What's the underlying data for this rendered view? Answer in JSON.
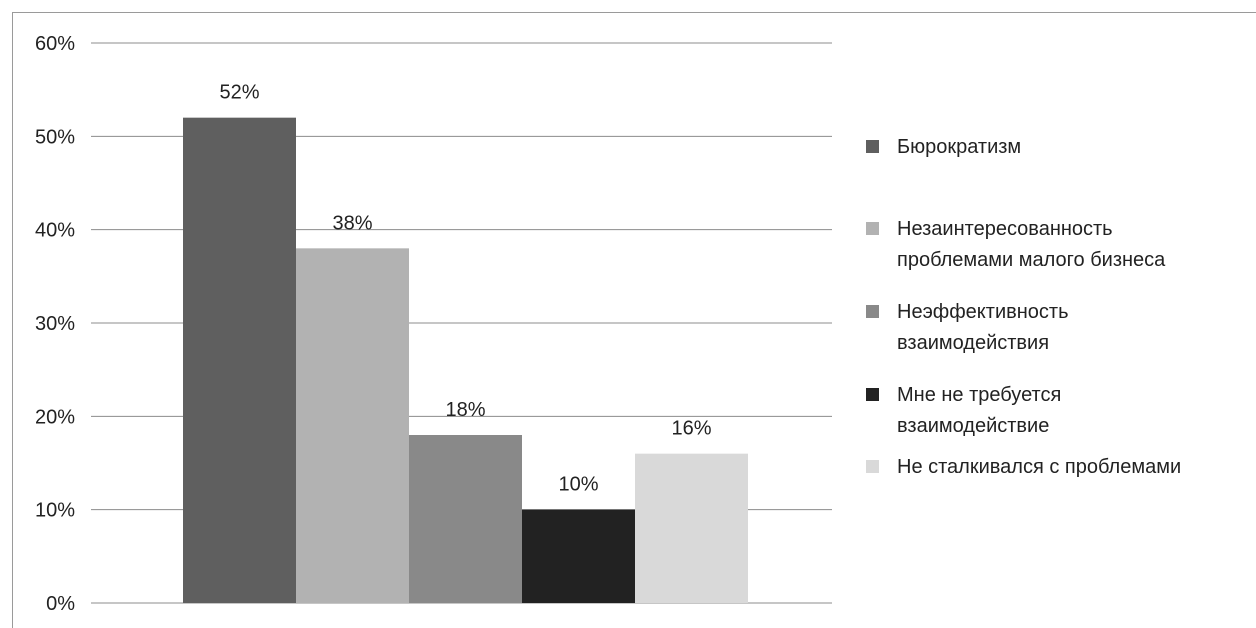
{
  "chart_data": {
    "type": "bar",
    "y_axis": {
      "min": 0,
      "max": 60,
      "step": 10,
      "tick_labels": [
        "0%",
        "10%",
        "20%",
        "30%",
        "40%",
        "50%",
        "60%"
      ]
    },
    "grid": true,
    "legend_position": "right",
    "series": [
      {
        "name": "Бюрократизм",
        "value": 52,
        "label": "52%",
        "color": "#5f5f5f",
        "legend_lines": [
          "Бюрократизм"
        ]
      },
      {
        "name": "Незаинтересованность проблемами малого бизнеса",
        "value": 38,
        "label": "38%",
        "color": "#b2b2b2",
        "legend_lines": [
          "Незаинтересованность",
          "проблемами малого бизнеса"
        ]
      },
      {
        "name": "Неэффективность взаимодействия",
        "value": 18,
        "label": "18%",
        "color": "#898989",
        "legend_lines": [
          "Неэффективность",
          "взаимодействия"
        ]
      },
      {
        "name": "Мне не требуется взаимодействие",
        "value": 10,
        "label": "10%",
        "color": "#222222",
        "legend_lines": [
          "Мне не требуется",
          "взаимодействие"
        ]
      },
      {
        "name": "Не сталкивался с проблемами",
        "value": 16,
        "label": "16%",
        "color": "#d9d9d9",
        "legend_lines": [
          "Не сталкивался с проблемами"
        ]
      }
    ]
  }
}
